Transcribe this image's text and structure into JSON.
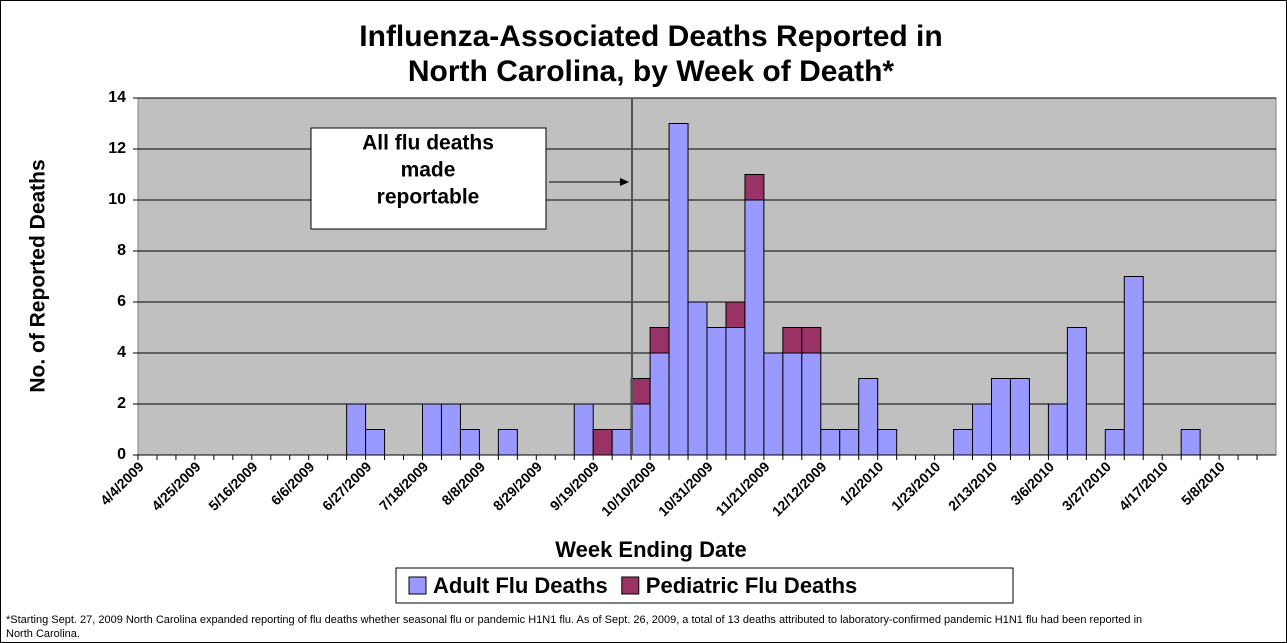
{
  "chart_data": {
    "type": "stacked_bar",
    "title": [
      "Influenza-Associated Deaths Reported in",
      "North Carolina, by Week of Death*"
    ],
    "x_label": "Week Ending Date",
    "y_label": "No. of Reported Deaths",
    "annotation": [
      "All flu deaths",
      "made",
      "reportable"
    ],
    "footnote": "*Starting Sept. 27, 2009 North Carolina expanded reporting of flu deaths whether seasonal flu or pandemic H1N1 flu. As of Sept. 26, 2009, a total of 13 deaths attributed to laboratory-confirmed pandemic H1N1 flu had been reported in North Carolina.",
    "categories": [
      "4/4/2009",
      null,
      null,
      "4/25/2009",
      null,
      null,
      "5/16/2009",
      null,
      null,
      "6/6/2009",
      null,
      null,
      "6/27/2009",
      null,
      null,
      "7/18/2009",
      null,
      null,
      "8/8/2009",
      null,
      null,
      "8/29/2009",
      null,
      null,
      "9/19/2009",
      null,
      null,
      "10/10/2009",
      null,
      null,
      "10/31/2009",
      null,
      null,
      "11/21/2009",
      null,
      null,
      "12/12/2009",
      null,
      null,
      "1/2/2010",
      null,
      null,
      "1/23/2010",
      null,
      null,
      "2/13/2010",
      null,
      null,
      "3/6/2010",
      null,
      null,
      "3/27/2010",
      null,
      null,
      "4/17/2010",
      null,
      null,
      "5/8/2010",
      null,
      null
    ],
    "series": [
      {
        "name": "Adult Flu Deaths",
        "color": "#9999ff",
        "values": [
          0,
          0,
          0,
          0,
          0,
          0,
          0,
          0,
          0,
          0,
          0,
          2,
          1,
          0,
          0,
          2,
          2,
          1,
          0,
          1,
          0,
          0,
          0,
          2,
          0,
          1,
          2,
          4,
          13,
          6,
          5,
          5,
          10,
          4,
          4,
          4,
          1,
          1,
          3,
          1,
          0,
          0,
          0,
          1,
          2,
          3,
          3,
          0,
          2,
          5,
          0,
          1,
          7,
          0,
          0,
          1,
          0,
          0,
          0,
          0
        ]
      },
      {
        "name": "Pediatric Flu Deaths",
        "color": "#993366",
        "values": [
          0,
          0,
          0,
          0,
          0,
          0,
          0,
          0,
          0,
          0,
          0,
          0,
          0,
          0,
          0,
          0,
          0,
          0,
          0,
          0,
          0,
          0,
          0,
          0,
          1,
          0,
          1,
          1,
          0,
          0,
          0,
          1,
          1,
          0,
          1,
          1,
          0,
          0,
          0,
          0,
          0,
          0,
          0,
          0,
          0,
          0,
          0,
          0,
          0,
          0,
          0,
          0,
          0,
          0,
          0,
          0,
          0,
          0,
          0,
          0
        ]
      }
    ],
    "ylim": [
      0,
      14
    ],
    "yticks": [
      0,
      2,
      4,
      6,
      8,
      10,
      12,
      14
    ],
    "grid": true
  }
}
